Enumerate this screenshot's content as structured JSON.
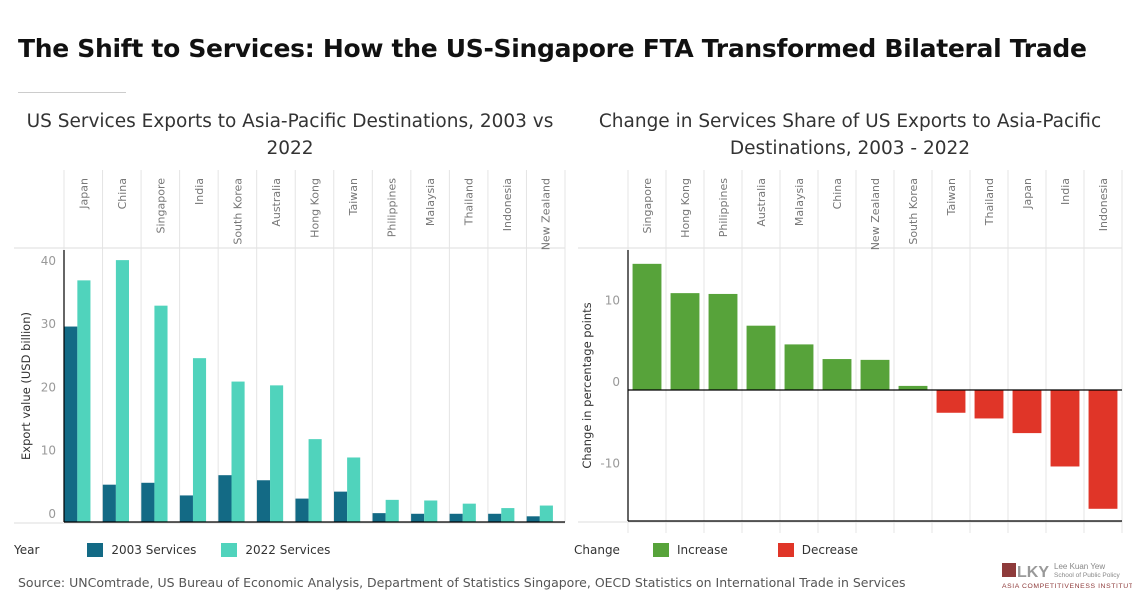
{
  "title": "The Shift to Services: How the US-Singapore FTA Transformed Bilateral Trade",
  "source": "Source: UNComtrade, US Bureau of Economic Analysis, Department of Statistics Singapore, OECD Statistics on International Trade in Services",
  "logo": {
    "line1": "Lee Kuan Yew",
    "line2": "School of Public Policy",
    "line3": "Asia Competitiveness Institute",
    "mark": "LKY"
  },
  "colors": {
    "s2003": "#136a85",
    "s2022": "#50d3bc",
    "increase": "#57a33a",
    "decrease": "#e03528"
  },
  "chart_data": [
    {
      "type": "bar",
      "title": "US Services Exports to Asia-Pacific Destinations, 2003 vs 2022",
      "ylabel": "Export value (USD billion)",
      "ylim": [
        0,
        43
      ],
      "yticks": [
        0,
        10,
        20,
        30,
        40
      ],
      "grid": true,
      "legend_title": "Year",
      "legend_position": "bottom",
      "categories": [
        "Japan",
        "China",
        "Singapore",
        "India",
        "South Korea",
        "Australia",
        "Hong Kong",
        "Taiwan",
        "Philippines",
        "Malaysia",
        "Thailand",
        "Indonesia",
        "New Zealand"
      ],
      "series": [
        {
          "name": "2003 Services",
          "values": [
            30.9,
            5.9,
            6.2,
            4.2,
            7.4,
            6.6,
            3.7,
            4.8,
            1.4,
            1.3,
            1.3,
            1.3,
            0.9
          ]
        },
        {
          "name": "2022 Services",
          "values": [
            38.2,
            41.4,
            34.2,
            25.9,
            22.2,
            21.6,
            13.1,
            10.2,
            3.5,
            3.4,
            2.9,
            2.2,
            2.6
          ]
        }
      ]
    },
    {
      "type": "bar",
      "title": "Change in Services Share of US Exports to Asia-Pacific Destinations, 2003 - 2022",
      "ylabel": "Change in percentage points",
      "ylim": [
        -16.1,
        17.2
      ],
      "yticks": [
        -10,
        0,
        10
      ],
      "grid": true,
      "legend_title": "Change",
      "legend_position": "bottom",
      "legend": [
        "Increase",
        "Decrease"
      ],
      "categories": [
        "Singapore",
        "Hong Kong",
        "Philippines",
        "Australia",
        "Malaysia",
        "China",
        "New Zealand",
        "South Korea",
        "Taiwan",
        "Thailand",
        "Japan",
        "India",
        "Indonesia"
      ],
      "values": [
        15.5,
        11.9,
        11.8,
        7.9,
        5.6,
        3.8,
        3.7,
        0.5,
        -2.8,
        -3.5,
        -5.3,
        -9.4,
        -14.6
      ]
    }
  ]
}
